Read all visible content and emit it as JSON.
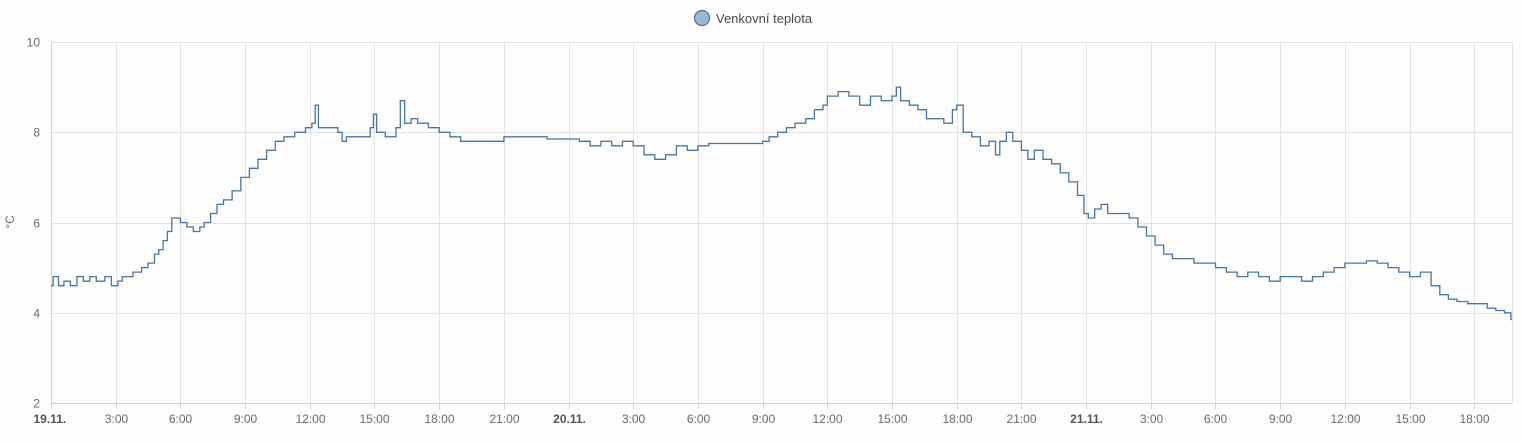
{
  "chart_data": {
    "type": "line",
    "legend": {
      "position": "top-center",
      "entries": [
        {
          "name": "Venkovní teplota",
          "color": "#4a76a1",
          "marker_fill": "#9db7d1"
        }
      ]
    },
    "ylabel": "°C",
    "ylim": [
      2,
      10
    ],
    "y_ticks": [
      {
        "value": 2,
        "label": "2"
      },
      {
        "value": 4,
        "label": "4"
      },
      {
        "value": 6,
        "label": "6"
      },
      {
        "value": 8,
        "label": "8"
      },
      {
        "value": 10,
        "label": "10"
      }
    ],
    "x_range": [
      "19.11. 00:00",
      "21.11. 20:00"
    ],
    "x_ticks": [
      {
        "hour": 0,
        "label": "19.11.",
        "bold": true
      },
      {
        "hour": 3,
        "label": "3:00"
      },
      {
        "hour": 6,
        "label": "6:00"
      },
      {
        "hour": 9,
        "label": "9:00"
      },
      {
        "hour": 12,
        "label": "12:00"
      },
      {
        "hour": 15,
        "label": "15:00"
      },
      {
        "hour": 18,
        "label": "18:00"
      },
      {
        "hour": 21,
        "label": "21:00"
      },
      {
        "hour": 24,
        "label": "20.11.",
        "bold": true
      },
      {
        "hour": 27,
        "label": "3:00"
      },
      {
        "hour": 30,
        "label": "6:00"
      },
      {
        "hour": 33,
        "label": "9:00"
      },
      {
        "hour": 36,
        "label": "12:00"
      },
      {
        "hour": 39,
        "label": "15:00"
      },
      {
        "hour": 42,
        "label": "18:00"
      },
      {
        "hour": 45,
        "label": "21:00"
      },
      {
        "hour": 48,
        "label": "21.11.",
        "bold": true
      },
      {
        "hour": 51,
        "label": "3:00"
      },
      {
        "hour": 54,
        "label": "6:00"
      },
      {
        "hour": 57,
        "label": "9:00"
      },
      {
        "hour": 60,
        "label": "12:00"
      },
      {
        "hour": 63,
        "label": "15:00"
      },
      {
        "hour": 66,
        "label": "18:00"
      }
    ],
    "grid": true,
    "series": [
      {
        "name": "Venkovní teplota",
        "color": "#4a76a1",
        "x_unit": "hours from 19.11. 00:00",
        "points": [
          [
            0.0,
            4.6
          ],
          [
            0.1,
            4.8
          ],
          [
            0.35,
            4.6
          ],
          [
            0.6,
            4.7
          ],
          [
            0.9,
            4.6
          ],
          [
            1.2,
            4.8
          ],
          [
            1.5,
            4.7
          ],
          [
            1.8,
            4.8
          ],
          [
            2.1,
            4.7
          ],
          [
            2.5,
            4.8
          ],
          [
            2.8,
            4.6
          ],
          [
            3.1,
            4.7
          ],
          [
            3.3,
            4.8
          ],
          [
            3.8,
            4.9
          ],
          [
            4.2,
            5.0
          ],
          [
            4.5,
            5.1
          ],
          [
            4.8,
            5.3
          ],
          [
            5.0,
            5.4
          ],
          [
            5.2,
            5.6
          ],
          [
            5.4,
            5.8
          ],
          [
            5.6,
            6.1
          ],
          [
            5.8,
            6.1
          ],
          [
            6.0,
            6.0
          ],
          [
            6.3,
            5.9
          ],
          [
            6.6,
            5.8
          ],
          [
            6.9,
            5.9
          ],
          [
            7.1,
            6.0
          ],
          [
            7.4,
            6.2
          ],
          [
            7.7,
            6.4
          ],
          [
            8.0,
            6.5
          ],
          [
            8.4,
            6.7
          ],
          [
            8.8,
            7.0
          ],
          [
            9.2,
            7.2
          ],
          [
            9.6,
            7.4
          ],
          [
            10.0,
            7.6
          ],
          [
            10.4,
            7.8
          ],
          [
            10.8,
            7.9
          ],
          [
            11.3,
            8.0
          ],
          [
            11.8,
            8.1
          ],
          [
            12.1,
            8.2
          ],
          [
            12.25,
            8.6
          ],
          [
            12.4,
            8.1
          ],
          [
            13.0,
            8.1
          ],
          [
            13.3,
            8.0
          ],
          [
            13.5,
            7.8
          ],
          [
            13.7,
            7.9
          ],
          [
            14.0,
            7.9
          ],
          [
            14.5,
            7.9
          ],
          [
            14.8,
            8.1
          ],
          [
            14.95,
            8.4
          ],
          [
            15.1,
            8.0
          ],
          [
            15.5,
            7.9
          ],
          [
            16.0,
            8.1
          ],
          [
            16.2,
            8.7
          ],
          [
            16.4,
            8.2
          ],
          [
            16.7,
            8.3
          ],
          [
            17.0,
            8.2
          ],
          [
            17.5,
            8.1
          ],
          [
            18.0,
            8.0
          ],
          [
            18.5,
            7.9
          ],
          [
            19.0,
            7.8
          ],
          [
            20.0,
            7.8
          ],
          [
            21.0,
            7.9
          ],
          [
            22.0,
            7.9
          ],
          [
            22.5,
            7.9
          ],
          [
            23.0,
            7.85
          ],
          [
            24.0,
            7.85
          ],
          [
            24.5,
            7.8
          ],
          [
            25.0,
            7.7
          ],
          [
            25.5,
            7.8
          ],
          [
            26.0,
            7.7
          ],
          [
            26.5,
            7.8
          ],
          [
            27.0,
            7.7
          ],
          [
            27.5,
            7.5
          ],
          [
            28.0,
            7.4
          ],
          [
            28.5,
            7.5
          ],
          [
            29.0,
            7.7
          ],
          [
            29.5,
            7.6
          ],
          [
            30.0,
            7.7
          ],
          [
            30.5,
            7.75
          ],
          [
            31.5,
            7.75
          ],
          [
            32.5,
            7.75
          ],
          [
            33.0,
            7.8
          ],
          [
            33.3,
            7.9
          ],
          [
            33.7,
            8.0
          ],
          [
            34.1,
            8.1
          ],
          [
            34.5,
            8.2
          ],
          [
            35.0,
            8.3
          ],
          [
            35.4,
            8.5
          ],
          [
            35.8,
            8.6
          ],
          [
            36.0,
            8.8
          ],
          [
            36.5,
            8.9
          ],
          [
            37.0,
            8.8
          ],
          [
            37.5,
            8.6
          ],
          [
            38.0,
            8.8
          ],
          [
            38.5,
            8.7
          ],
          [
            39.0,
            8.8
          ],
          [
            39.2,
            9.0
          ],
          [
            39.4,
            8.7
          ],
          [
            39.8,
            8.6
          ],
          [
            40.2,
            8.5
          ],
          [
            40.6,
            8.3
          ],
          [
            41.0,
            8.3
          ],
          [
            41.4,
            8.2
          ],
          [
            41.8,
            8.5
          ],
          [
            42.0,
            8.6
          ],
          [
            42.3,
            8.0
          ],
          [
            42.7,
            7.9
          ],
          [
            43.1,
            7.7
          ],
          [
            43.5,
            7.8
          ],
          [
            43.8,
            7.5
          ],
          [
            44.0,
            7.8
          ],
          [
            44.3,
            8.0
          ],
          [
            44.6,
            7.8
          ],
          [
            45.0,
            7.6
          ],
          [
            45.3,
            7.4
          ],
          [
            45.6,
            7.6
          ],
          [
            46.0,
            7.4
          ],
          [
            46.4,
            7.3
          ],
          [
            46.8,
            7.1
          ],
          [
            47.2,
            6.9
          ],
          [
            47.6,
            6.6
          ],
          [
            47.9,
            6.2
          ],
          [
            48.1,
            6.1
          ],
          [
            48.4,
            6.3
          ],
          [
            48.7,
            6.4
          ],
          [
            49.0,
            6.2
          ],
          [
            49.5,
            6.2
          ],
          [
            50.0,
            6.1
          ],
          [
            50.4,
            5.9
          ],
          [
            50.8,
            5.7
          ],
          [
            51.2,
            5.5
          ],
          [
            51.6,
            5.3
          ],
          [
            52.0,
            5.2
          ],
          [
            52.5,
            5.2
          ],
          [
            53.0,
            5.1
          ],
          [
            53.5,
            5.1
          ],
          [
            54.0,
            5.0
          ],
          [
            54.5,
            4.9
          ],
          [
            55.0,
            4.8
          ],
          [
            55.5,
            4.9
          ],
          [
            56.0,
            4.8
          ],
          [
            56.5,
            4.7
          ],
          [
            57.0,
            4.8
          ],
          [
            57.5,
            4.8
          ],
          [
            58.0,
            4.7
          ],
          [
            58.5,
            4.8
          ],
          [
            59.0,
            4.9
          ],
          [
            59.5,
            5.0
          ],
          [
            60.0,
            5.1
          ],
          [
            60.5,
            5.1
          ],
          [
            61.0,
            5.15
          ],
          [
            61.5,
            5.1
          ],
          [
            62.0,
            5.0
          ],
          [
            62.5,
            4.9
          ],
          [
            63.0,
            4.8
          ],
          [
            63.5,
            4.9
          ],
          [
            64.0,
            4.6
          ],
          [
            64.4,
            4.4
          ],
          [
            64.8,
            4.3
          ],
          [
            65.2,
            4.25
          ],
          [
            65.7,
            4.2
          ],
          [
            66.2,
            4.2
          ],
          [
            66.6,
            4.1
          ],
          [
            67.0,
            4.05
          ],
          [
            67.4,
            4.0
          ],
          [
            67.7,
            3.85
          ]
        ]
      }
    ]
  }
}
